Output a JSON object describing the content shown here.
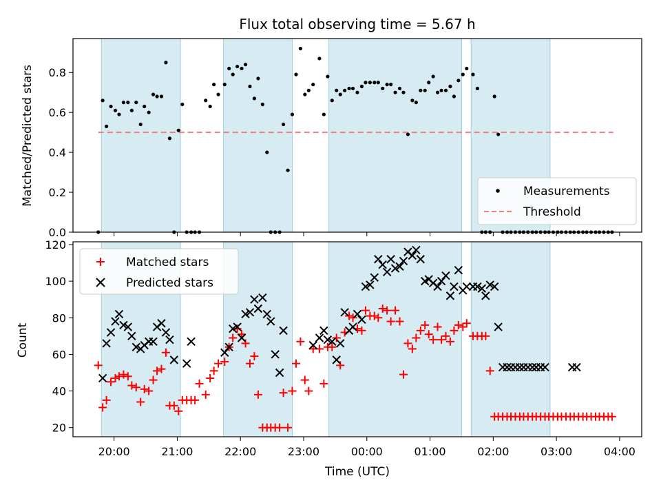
{
  "chart_data": {
    "title": "Flux total observing time = 5.67 h",
    "xlabel": "Time (UTC)",
    "x_ticks": [
      "20:00",
      "21:00",
      "22:00",
      "23:00",
      "00:00",
      "01:00",
      "02:00",
      "03:00",
      "04:00"
    ],
    "x_range_hours": [
      19.35,
      28.35
    ],
    "shaded_spans_hours": [
      [
        19.8,
        21.05
      ],
      [
        21.73,
        22.82
      ],
      [
        23.4,
        25.5
      ],
      [
        25.65,
        26.9
      ]
    ],
    "panels": [
      {
        "type": "scatter",
        "ylabel": "Matched/Predicted stars",
        "ylim": [
          0,
          0.97
        ],
        "yticks": [
          "0.0",
          "0.2",
          "0.4",
          "0.6",
          "0.8"
        ],
        "legend_position": "lower-right",
        "series": [
          {
            "name": "Measurements",
            "marker": "dot",
            "color": "#000000",
            "x": [
              19.75,
              19.82,
              19.88,
              19.95,
              20.02,
              20.08,
              20.15,
              20.22,
              20.28,
              20.35,
              20.42,
              20.48,
              20.55,
              20.62,
              20.68,
              20.75,
              20.82,
              20.88,
              20.95,
              21.02,
              21.08,
              21.15,
              21.22,
              21.28,
              21.35,
              21.45,
              21.52,
              21.58,
              21.65,
              21.75,
              21.82,
              21.88,
              21.95,
              22.02,
              22.08,
              22.15,
              22.22,
              22.28,
              22.35,
              22.42,
              22.48,
              22.55,
              22.62,
              22.68,
              22.75,
              22.82,
              22.88,
              22.95,
              23.02,
              23.08,
              23.15,
              23.25,
              23.32,
              23.38,
              23.45,
              23.52,
              23.58,
              23.65,
              23.72,
              23.78,
              23.85,
              23.92,
              23.98,
              24.05,
              24.12,
              24.18,
              24.25,
              24.32,
              24.38,
              24.45,
              24.52,
              24.58,
              24.65,
              24.72,
              24.78,
              24.85,
              24.92,
              24.98,
              25.05,
              25.12,
              25.18,
              25.25,
              25.32,
              25.38,
              25.45,
              25.52,
              25.58,
              25.68,
              25.75,
              25.82,
              25.88,
              25.95,
              26.02,
              26.08,
              26.15,
              26.22,
              26.28,
              26.35,
              26.42,
              26.48,
              26.55,
              26.62,
              26.68,
              26.75,
              26.82,
              26.88,
              26.95,
              27.02,
              27.08,
              27.15,
              27.22,
              27.28,
              27.35,
              27.42,
              27.48,
              27.55,
              27.62,
              27.68,
              27.75,
              27.82,
              27.88
            ],
            "y": [
              0.0,
              0.66,
              0.53,
              0.63,
              0.61,
              0.59,
              0.65,
              0.65,
              0.61,
              0.65,
              0.54,
              0.63,
              0.6,
              0.69,
              0.68,
              0.68,
              0.85,
              0.47,
              0.0,
              0.51,
              0.64,
              0.0,
              0.0,
              0.0,
              0.0,
              0.66,
              0.63,
              0.74,
              0.69,
              0.74,
              0.82,
              0.79,
              0.83,
              0.82,
              0.84,
              0.73,
              0.67,
              0.77,
              0.64,
              0.4,
              0.0,
              0.0,
              0.0,
              0.54,
              0.31,
              0.59,
              0.79,
              0.92,
              0.69,
              0.71,
              0.74,
              0.87,
              0.59,
              0.78,
              0.66,
              0.71,
              0.69,
              0.71,
              0.72,
              0.72,
              0.7,
              0.73,
              0.75,
              0.75,
              0.75,
              0.75,
              0.72,
              0.74,
              0.74,
              0.7,
              0.72,
              0.7,
              0.49,
              0.66,
              0.65,
              0.71,
              0.71,
              0.75,
              0.78,
              0.7,
              0.71,
              0.71,
              0.73,
              0.68,
              0.76,
              0.79,
              0.82,
              0.79,
              0.72,
              0.0,
              0.0,
              0.0,
              0.68,
              0.49,
              0.0,
              0.0,
              0.0,
              0.0,
              0.0,
              0.0,
              0.0,
              0.0,
              0.0,
              0.0,
              0.0,
              0.0,
              0.0,
              0.0,
              0.0,
              0.0,
              0.0,
              0.0,
              0.0,
              0.0,
              0.0,
              0.0,
              0.0,
              0.0,
              0.0,
              0.0,
              0.0
            ]
          },
          {
            "name": "Threshold",
            "marker": "dashed-line",
            "color": "#f08080",
            "x": [
              19.75,
              27.9
            ],
            "y": [
              0.5,
              0.5
            ]
          }
        ]
      },
      {
        "type": "scatter",
        "ylabel": "Count",
        "ylim": [
          15,
          121.5
        ],
        "yticks": [
          "20",
          "40",
          "60",
          "80",
          "100",
          "120"
        ],
        "legend_position": "upper-left",
        "series": [
          {
            "name": "Matched stars",
            "marker": "plus",
            "color": "#ff0000",
            "x": [
              19.75,
              19.82,
              19.88,
              19.95,
              20.02,
              20.08,
              20.15,
              20.22,
              20.28,
              20.35,
              20.42,
              20.48,
              20.55,
              20.62,
              20.68,
              20.75,
              20.82,
              20.88,
              20.95,
              21.02,
              21.08,
              21.15,
              21.22,
              21.28,
              21.35,
              21.45,
              21.52,
              21.58,
              21.65,
              21.75,
              21.82,
              21.88,
              21.95,
              22.02,
              22.08,
              22.15,
              22.22,
              22.28,
              22.35,
              22.42,
              22.48,
              22.55,
              22.62,
              22.68,
              22.75,
              22.82,
              22.88,
              22.95,
              23.02,
              23.08,
              23.15,
              23.25,
              23.32,
              23.38,
              23.45,
              23.52,
              23.58,
              23.65,
              23.72,
              23.78,
              23.85,
              23.92,
              23.98,
              24.05,
              24.12,
              24.18,
              24.25,
              24.32,
              24.38,
              24.45,
              24.52,
              24.58,
              24.65,
              24.72,
              24.78,
              24.85,
              24.92,
              24.98,
              25.05,
              25.12,
              25.18,
              25.25,
              25.32,
              25.38,
              25.45,
              25.52,
              25.58,
              25.68,
              25.75,
              25.82,
              25.88,
              25.95,
              26.02,
              26.08,
              26.15,
              26.22,
              26.28,
              26.35,
              26.42,
              26.48,
              26.55,
              26.62,
              26.68,
              26.75,
              26.82,
              26.88,
              26.95,
              27.02,
              27.08,
              27.15,
              27.22,
              27.28,
              27.35,
              27.42,
              27.48,
              27.55,
              27.62,
              27.68,
              27.75,
              27.82,
              27.88
            ],
            "y": [
              54,
              31,
              35,
              45,
              47,
              48,
              49,
              48,
              43,
              42,
              34,
              41,
              40,
              46,
              51,
              52,
              61,
              32,
              32,
              29,
              35,
              35,
              35,
              35,
              44,
              38,
              47,
              51,
              55,
              56,
              64,
              69,
              74,
              71,
              66,
              55,
              59,
              38,
              20,
              20,
              20,
              20,
              20,
              39,
              20,
              40,
              55,
              67,
              46,
              40,
              63,
              63,
              44,
              64,
              64,
              69,
              54,
              72,
              81,
              80,
              74,
              73,
              84,
              81,
              81,
              80,
              85,
              84,
              78,
              84,
              78,
              49,
              66,
              63,
              69,
              73,
              76,
              71,
              68,
              75,
              68,
              70,
              67,
              73,
              76,
              75,
              77,
              70,
              70,
              70,
              70,
              51,
              26,
              26,
              26,
              26,
              26,
              26,
              26,
              26,
              26,
              26,
              26,
              26,
              26,
              26,
              26,
              26,
              26,
              26,
              26,
              26,
              26,
              26,
              26,
              26,
              26,
              26,
              26,
              26,
              26
            ],
            "x_override": [
              19.75,
              19.82,
              19.88,
              19.95,
              20.02,
              20.08,
              20.15,
              20.22,
              20.28,
              20.35,
              20.42,
              20.48,
              20.55,
              20.62,
              20.68,
              20.75,
              20.82,
              20.88,
              20.95,
              21.02,
              21.08,
              21.15,
              21.22,
              21.28,
              21.35,
              21.45,
              21.52,
              21.58,
              21.65,
              21.75,
              21.82,
              21.88,
              21.95,
              22.02,
              22.08,
              22.15,
              22.22,
              22.28,
              22.35,
              22.42,
              22.48,
              22.55,
              22.62,
              22.68,
              22.75,
              22.82,
              22.88,
              22.95,
              23.02,
              23.08,
              23.15,
              23.25,
              23.32,
              23.38,
              23.45,
              23.52,
              23.58,
              23.65,
              23.72,
              23.78,
              23.85,
              23.92,
              23.98,
              24.05,
              24.12,
              24.18,
              24.25,
              24.32,
              24.38,
              24.45,
              24.52,
              24.58,
              24.65,
              24.72,
              24.78,
              24.85,
              24.92,
              24.98,
              25.05,
              25.12,
              25.18,
              25.25,
              25.32,
              25.38,
              25.45,
              25.52,
              25.58,
              25.68,
              25.75,
              25.82,
              25.88,
              25.95,
              26.02,
              26.08,
              26.15,
              26.22,
              26.28,
              26.35,
              26.42,
              26.48,
              26.55,
              26.62,
              26.68,
              26.75,
              26.82,
              26.88,
              26.95,
              27.02,
              27.08,
              27.15,
              27.22,
              27.28,
              27.35,
              27.42,
              27.48,
              27.55,
              27.62,
              27.68,
              27.75,
              27.82,
              27.88
            ]
          },
          {
            "name": "Predicted stars",
            "marker": "x",
            "color": "#000000",
            "x": [
              19.82,
              19.88,
              19.95,
              20.02,
              20.08,
              20.15,
              20.22,
              20.28,
              20.35,
              20.42,
              20.48,
              20.55,
              20.62,
              20.68,
              20.75,
              20.82,
              20.88,
              20.95,
              21.15,
              21.22,
              21.75,
              21.82,
              21.88,
              21.95,
              22.02,
              22.08,
              22.15,
              22.22,
              22.28,
              22.35,
              22.42,
              22.48,
              22.55,
              22.62,
              22.68,
              23.15,
              23.25,
              23.32,
              23.38,
              23.45,
              23.52,
              23.58,
              23.65,
              23.72,
              23.78,
              23.85,
              23.92,
              23.98,
              24.05,
              24.12,
              24.18,
              24.25,
              24.32,
              24.38,
              24.45,
              24.52,
              24.58,
              24.65,
              24.72,
              24.78,
              24.85,
              24.92,
              24.98,
              25.05,
              25.12,
              25.18,
              25.25,
              25.32,
              25.38,
              25.45,
              25.52,
              25.58,
              25.68,
              25.75,
              25.82,
              25.88,
              25.95,
              26.02,
              26.08,
              26.15,
              26.22,
              26.28,
              26.35,
              26.42,
              26.48,
              26.55,
              26.62,
              26.68,
              26.75,
              26.82,
              27.25,
              27.32
            ],
            "y": [
              47,
              66,
              72,
              78,
              82,
              76,
              75,
              70,
              64,
              63,
              65,
              67,
              67,
              75,
              77,
              72,
              68,
              57,
              55,
              67,
              61,
              64,
              74,
              75,
              69,
              82,
              83,
              90,
              85,
              91,
              82,
              78,
              60,
              50,
              73,
              65,
              69,
              73,
              68,
              67,
              57,
              66,
              83,
              73,
              75,
              82,
              79,
              97,
              98,
              102,
              112,
              109,
              105,
              112,
              107,
              108,
              111,
              116,
              114,
              117,
              112,
              100,
              101,
              99,
              97,
              100,
              103,
              92,
              97,
              106,
              95,
              97,
              97,
              97,
              96,
              92,
              98,
              97,
              75,
              53,
              53,
              53,
              53,
              53,
              53,
              53,
              53,
              53,
              53,
              53,
              53,
              53
            ]
          }
        ]
      }
    ]
  }
}
